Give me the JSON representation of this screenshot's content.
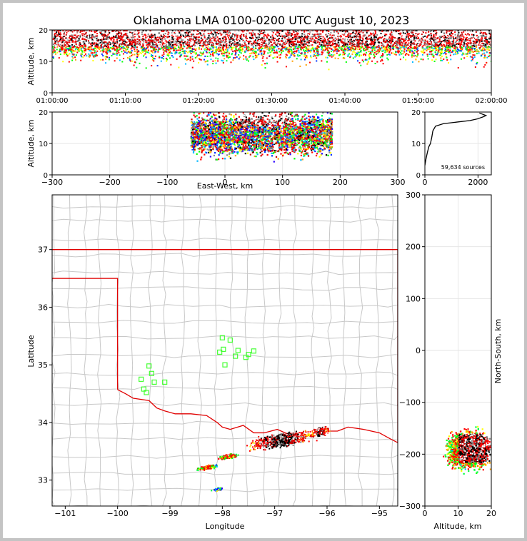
{
  "chart_data": [
    {
      "type": "scatter",
      "title": "Oklahoma LMA 0100-0200 UTC August 10, 2023",
      "xlabel": "",
      "ylabel": "Altitude, km",
      "x_tick_labels": [
        "01:00:00",
        "01:10:00",
        "01:20:00",
        "01:30:00",
        "01:40:00",
        "01:50:00",
        "02:00:00"
      ],
      "xlim": [
        "01:00:00",
        "02:00:00"
      ],
      "ylim": [
        0,
        20
      ],
      "y_ticks": [
        0,
        10,
        20
      ],
      "description_of_density": "sources distributed over the full hour, densest 10-20 km"
    },
    {
      "type": "scatter",
      "xlabel": "East-West, km",
      "ylabel": "Altitude, km",
      "xlim": [
        -300,
        300
      ],
      "x_ticks": [
        -300,
        -200,
        -100,
        0,
        100,
        200,
        300
      ],
      "ylim": [
        0,
        20
      ],
      "y_ticks": [
        0,
        10,
        20
      ],
      "x_range_of_sources": [
        -60,
        185
      ]
    },
    {
      "type": "line",
      "xlim": [
        0,
        2500
      ],
      "x_ticks": [
        0,
        2000
      ],
      "ylim": [
        0,
        20
      ],
      "y_ticks": [
        0,
        10,
        20
      ],
      "annotation": "59,634 sources",
      "profile": [
        [
          0,
          3
        ],
        [
          40,
          5
        ],
        [
          90,
          7
        ],
        [
          150,
          9
        ],
        [
          210,
          10
        ],
        [
          260,
          12
        ],
        [
          300,
          14
        ],
        [
          400,
          15.5
        ],
        [
          700,
          16.3
        ],
        [
          1200,
          16.8
        ],
        [
          1700,
          17.3
        ],
        [
          1970,
          17.8
        ],
        [
          2200,
          18.5
        ],
        [
          2300,
          18.9
        ],
        [
          2050,
          19.7
        ]
      ]
    },
    {
      "type": "scatter",
      "xlabel": "Longitude",
      "ylabel": "Latitude",
      "xlim": [
        -101.25,
        -94.65
      ],
      "x_ticks": [
        -101,
        -100,
        -99,
        -98,
        -97,
        -96,
        -95
      ],
      "ylim": [
        32.55,
        37.95
      ],
      "y_ticks": [
        33,
        34,
        35,
        36,
        37
      ],
      "stations": [
        [
          -99.4,
          34.98
        ],
        [
          -99.35,
          34.85
        ],
        [
          -99.55,
          34.75
        ],
        [
          -99.3,
          34.7
        ],
        [
          -99.5,
          34.58
        ],
        [
          -99.45,
          34.52
        ],
        [
          -99.1,
          34.7
        ],
        [
          -98.05,
          35.22
        ],
        [
          -97.98,
          35.27
        ],
        [
          -98.0,
          35.47
        ],
        [
          -97.85,
          35.43
        ],
        [
          -97.75,
          35.15
        ],
        [
          -97.7,
          35.25
        ],
        [
          -97.55,
          35.13
        ],
        [
          -97.5,
          35.18
        ],
        [
          -97.4,
          35.24
        ],
        [
          -97.95,
          35.0
        ]
      ]
    },
    {
      "type": "scatter",
      "xlabel": "Altitude, km",
      "ylabel": "North-South, km",
      "xlim": [
        0,
        20
      ],
      "x_ticks": [
        0,
        10,
        20
      ],
      "ylim": [
        -300,
        300
      ],
      "y_ticks": [
        -300,
        -200,
        -100,
        0,
        100,
        200,
        300
      ],
      "y_range_of_sources": [
        -275,
        -145
      ]
    }
  ]
}
